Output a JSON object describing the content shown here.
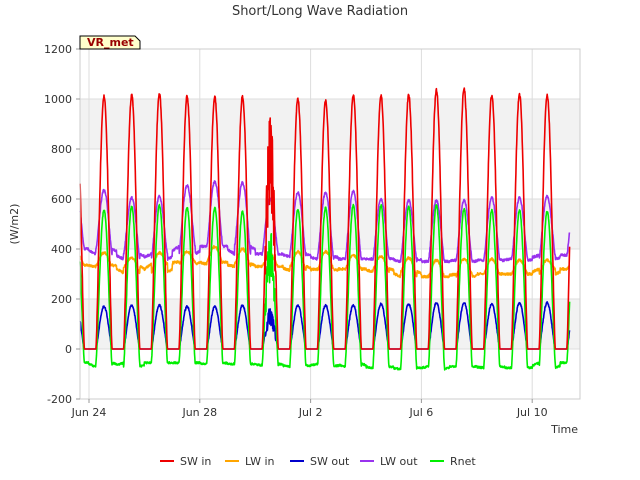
{
  "chart_data": {
    "type": "line",
    "title": "Short/Long Wave Radiation",
    "ylabel": "(W/m2)",
    "xlabel": "Time",
    "station_tag": "VR_met",
    "ylim": [
      -200,
      1200
    ],
    "xlim_days": [
      0,
      18
    ],
    "grid": true,
    "background_bands": "alternating light-grey bands every 200 W/m2",
    "legend_position": "bottom-center",
    "y_ticks": [
      {
        "value": -200,
        "label": "-200"
      },
      {
        "value": 0,
        "label": "0"
      },
      {
        "value": 200,
        "label": "200"
      },
      {
        "value": 400,
        "label": "400"
      },
      {
        "value": 600,
        "label": "600"
      },
      {
        "value": 800,
        "label": "800"
      },
      {
        "value": 1000,
        "label": "1000"
      },
      {
        "value": 1200,
        "label": "1200"
      }
    ],
    "x_ticks": [
      {
        "day": 0,
        "label": "Jun 24"
      },
      {
        "day": 4,
        "label": "Jun 28"
      },
      {
        "day": 8,
        "label": "Jul 2"
      },
      {
        "day": 12,
        "label": "Jul 6"
      },
      {
        "day": 16,
        "label": "Jul 10"
      }
    ],
    "day_labels": [
      "Jun 24",
      "Jun 25",
      "Jun 26",
      "Jun 27",
      "Jun 28",
      "Jun 29",
      "Jun 30",
      "Jul 1",
      "Jul 2",
      "Jul 3",
      "Jul 4",
      "Jul 5",
      "Jul 6",
      "Jul 7",
      "Jul 8",
      "Jul 9",
      "Jul 10",
      "Jul 11"
    ],
    "series": [
      {
        "name": "SW in",
        "color": "#ee0000",
        "night": [
          0,
          0,
          0,
          0,
          0,
          0,
          0,
          0,
          0,
          0,
          0,
          0,
          0,
          0,
          0,
          0,
          0,
          0
        ],
        "peak": [
          1010,
          1015,
          1020,
          1010,
          1010,
          1010,
          880,
          1000,
          995,
          1015,
          1015,
          1015,
          1035,
          1040,
          1015,
          1020,
          1015
        ]
      },
      {
        "name": "LW in",
        "color": "#ffa500",
        "night": [
          335,
          330,
          305,
          340,
          350,
          340,
          330,
          330,
          315,
          320,
          320,
          310,
          290,
          290,
          300,
          300,
          300,
          320
        ],
        "peak": [
          385,
          365,
          385,
          390,
          410,
          400,
          380,
          390,
          390,
          375,
          370,
          365,
          355,
          360,
          360,
          355,
          355
        ]
      },
      {
        "name": "SW out",
        "color": "#0000cc",
        "night": [
          0,
          0,
          0,
          0,
          0,
          0,
          0,
          0,
          0,
          0,
          0,
          0,
          0,
          0,
          0,
          0,
          0,
          0
        ],
        "peak": [
          170,
          175,
          175,
          170,
          170,
          175,
          155,
          175,
          175,
          175,
          180,
          180,
          185,
          185,
          180,
          185,
          185
        ]
      },
      {
        "name": "LW out",
        "color": "#9933ee",
        "night": [
          400,
          380,
          360,
          380,
          410,
          410,
          380,
          380,
          370,
          360,
          360,
          360,
          350,
          350,
          355,
          355,
          360,
          375
        ],
        "peak": [
          635,
          605,
          610,
          655,
          670,
          665,
          600,
          625,
          625,
          630,
          600,
          595,
          595,
          595,
          605,
          605,
          610
        ]
      },
      {
        "name": "Rnet",
        "color": "#00ee00",
        "night": [
          -55,
          -70,
          -55,
          -55,
          -55,
          -60,
          -60,
          -65,
          -70,
          -60,
          -70,
          -75,
          -80,
          -70,
          -70,
          -75,
          -75,
          -55
        ],
        "peak": [
          555,
          570,
          575,
          565,
          565,
          550,
          480,
          560,
          565,
          575,
          575,
          570,
          575,
          560,
          555,
          555,
          550
        ]
      }
    ]
  }
}
